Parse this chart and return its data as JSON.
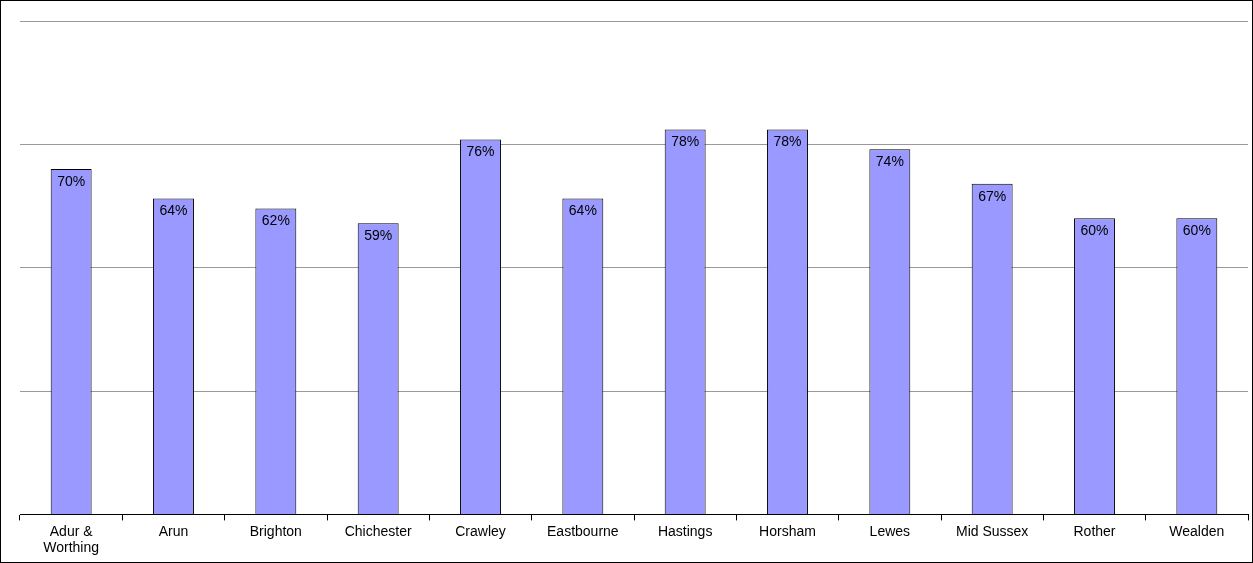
{
  "chart_data": {
    "type": "bar",
    "categories": [
      "Adur & Worthing",
      "Arun",
      "Brighton",
      "Chichester",
      "Crawley",
      "Eastbourne",
      "Hastings",
      "Horsham",
      "Lewes",
      "Mid Sussex",
      "Rother",
      "Wealden"
    ],
    "values": [
      70,
      64,
      62,
      59,
      76,
      64,
      78,
      78,
      74,
      67,
      60,
      60
    ],
    "value_labels": [
      "70%",
      "64%",
      "62%",
      "59%",
      "76%",
      "64%",
      "78%",
      "78%",
      "74%",
      "67%",
      "60%",
      "60%"
    ],
    "color": "#9999ff",
    "ylim": [
      0,
      100
    ],
    "yticks": [
      {
        "value": 0,
        "label": null
      },
      {
        "value": 25,
        "label": null
      },
      {
        "value": 50,
        "label": null
      },
      {
        "value": 75,
        "label": null
      },
      {
        "value": 100,
        "label": null
      }
    ],
    "grid": "y",
    "legend": false
  }
}
